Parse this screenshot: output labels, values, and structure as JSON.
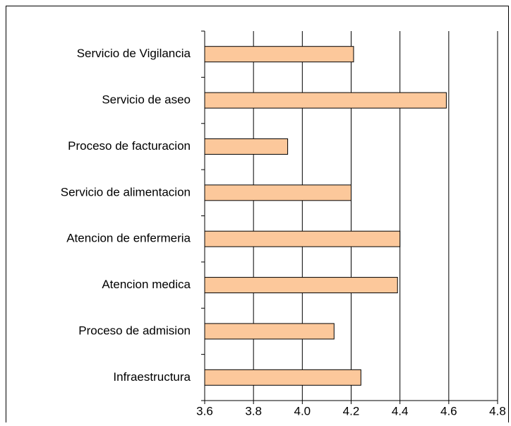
{
  "chart_data": {
    "type": "bar",
    "orientation": "horizontal",
    "categories": [
      "Servicio de Vigilancia",
      "Servicio de aseo",
      "Proceso de facturacion",
      "Servicio de alimentacion",
      "Atencion de enfermeria",
      "Atencion medica",
      "Proceso de admision",
      "Infraestructura"
    ],
    "values": [
      4.21,
      4.59,
      3.94,
      4.2,
      4.4,
      4.39,
      4.13,
      4.24
    ],
    "color": "#fcc89b",
    "xlim": [
      3.6,
      4.8
    ],
    "xticks": [
      3.6,
      3.8,
      {
        "value": 4,
        "label": "4.0"
      },
      4.2,
      4.4,
      4.6,
      4.8
    ],
    "grid": true
  }
}
